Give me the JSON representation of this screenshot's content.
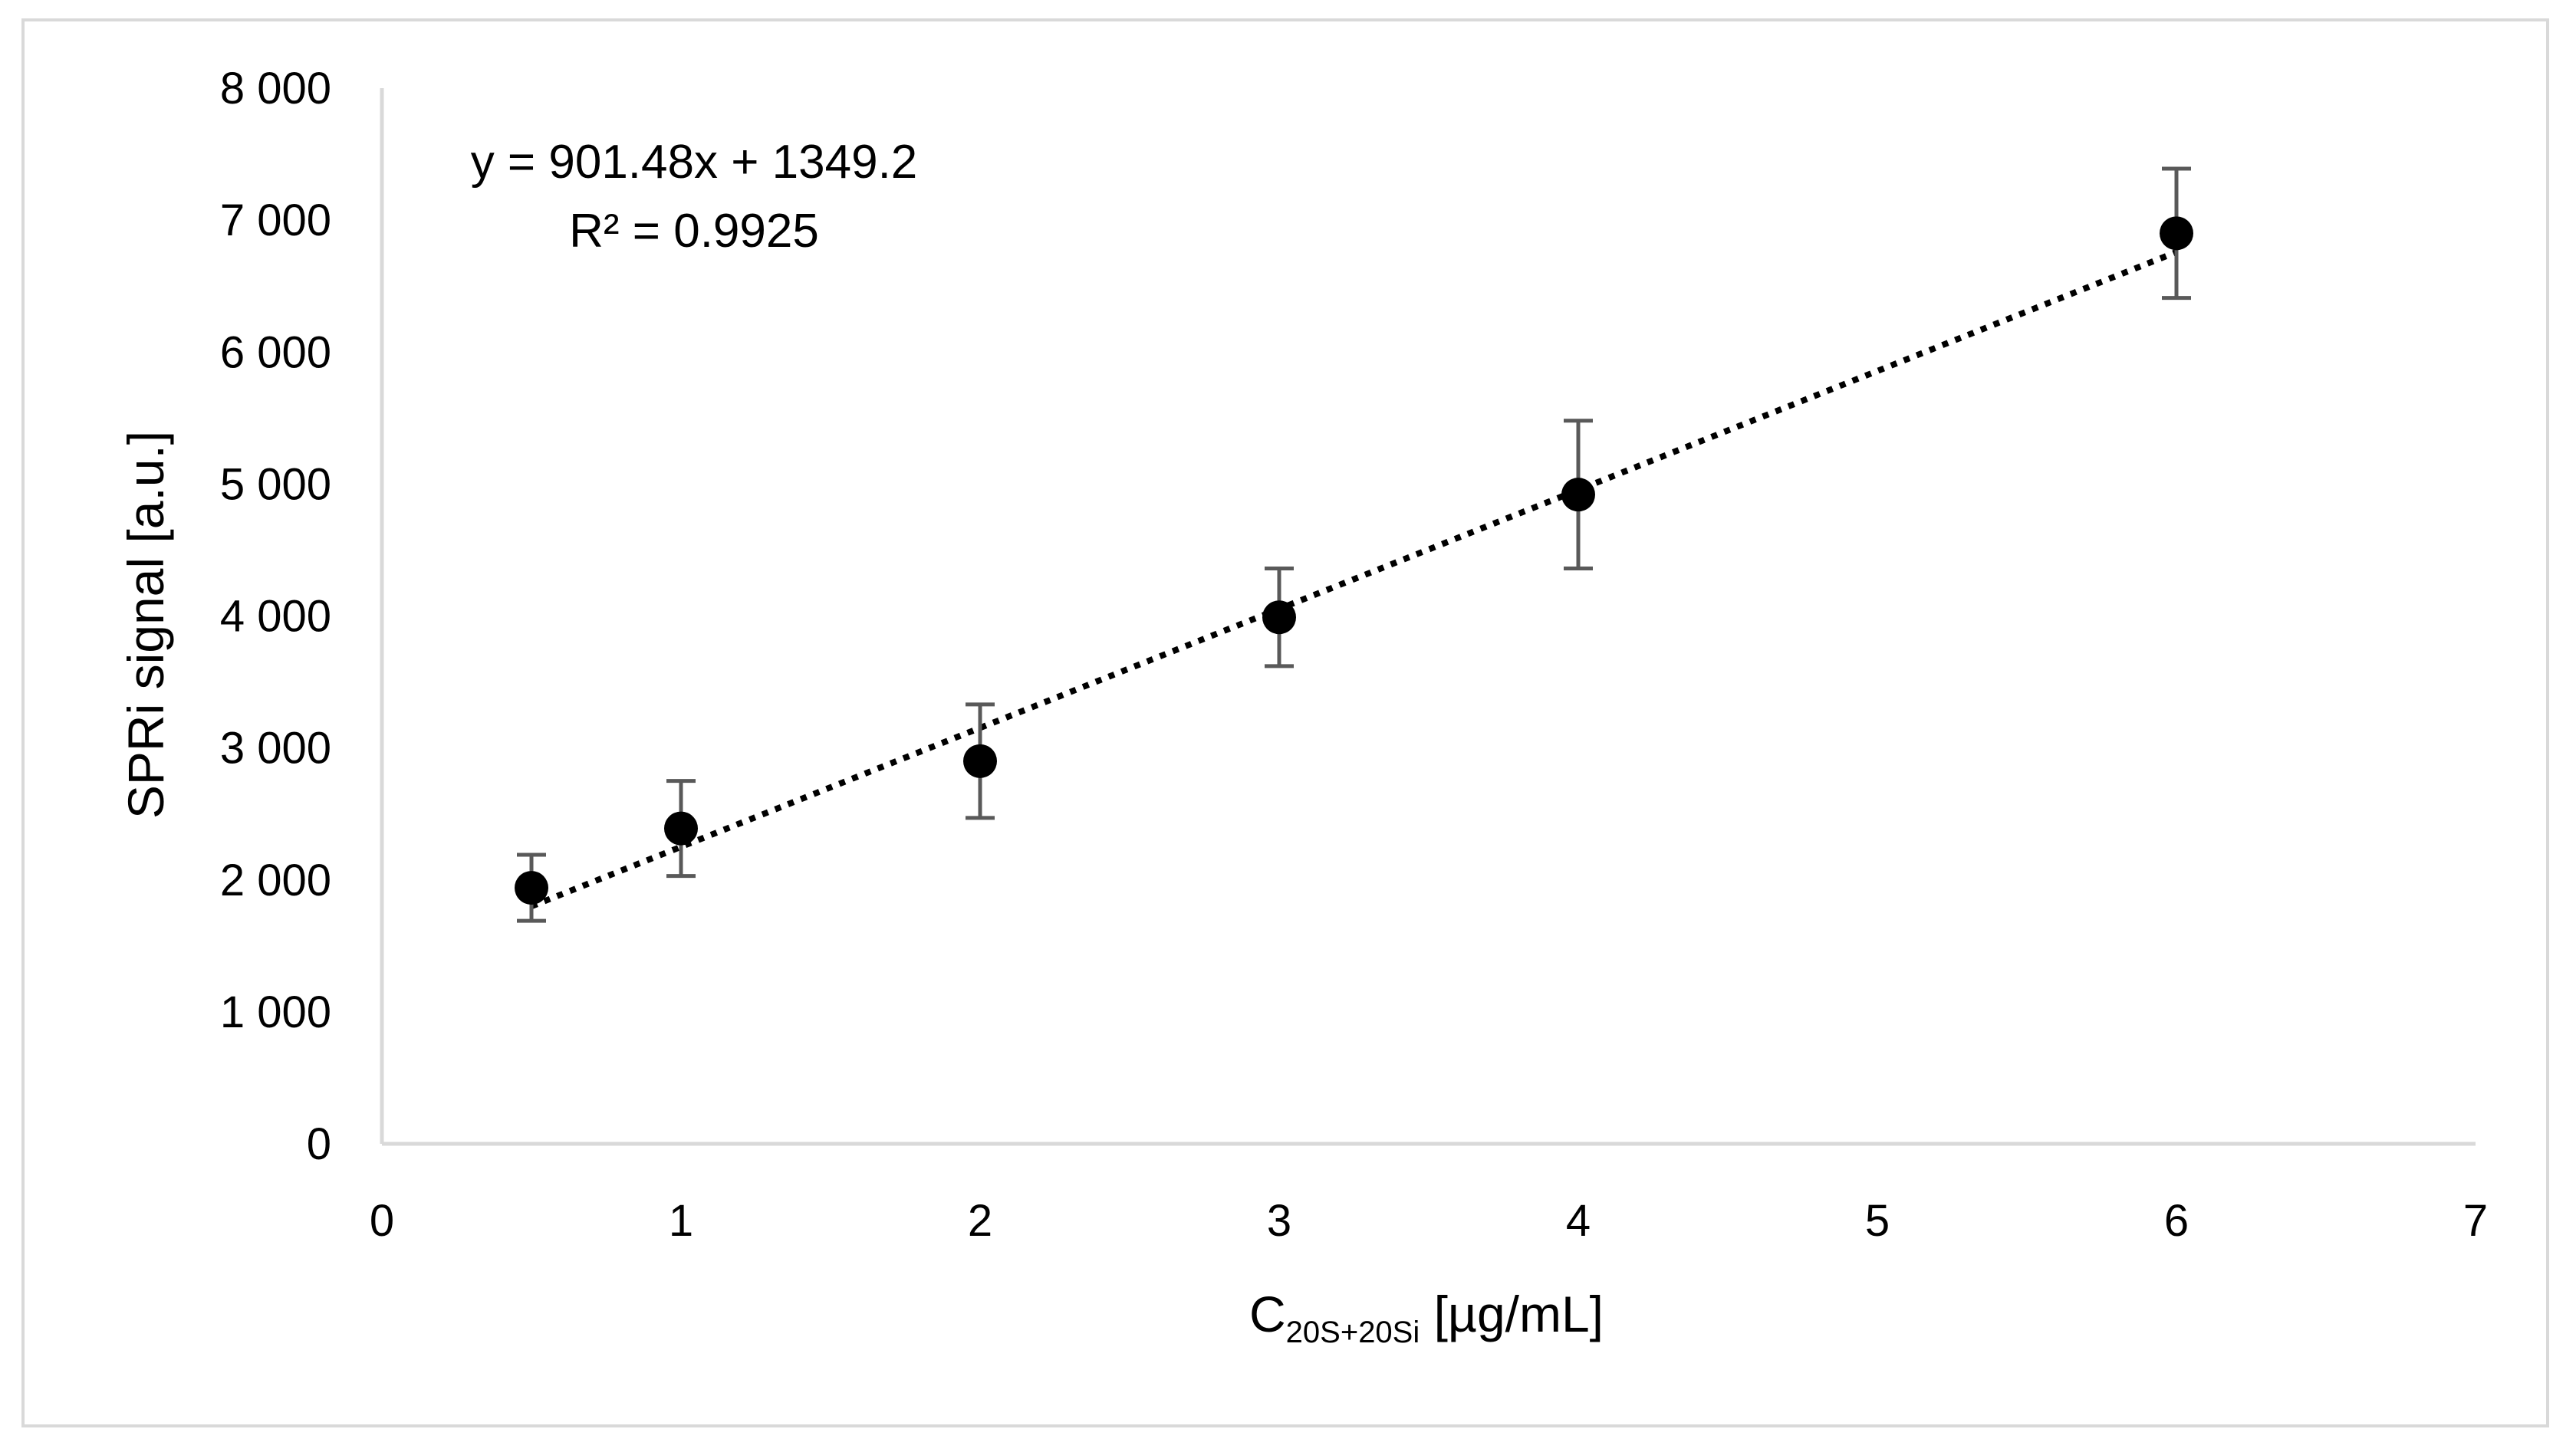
{
  "chart_data": {
    "type": "scatter",
    "title": "",
    "xlabel": "C",
    "xlabel_subscript": "20S+20Si",
    "xlabel_unit": " [µg/mL]",
    "ylabel": "SPRi signal [a.u.]",
    "xlim": [
      0,
      7
    ],
    "ylim": [
      0,
      8000
    ],
    "x_ticks": [
      0,
      1,
      2,
      3,
      4,
      5,
      6,
      7
    ],
    "x_tick_labels": [
      "0",
      "1",
      "2",
      "3",
      "4",
      "5",
      "6",
      "7"
    ],
    "y_ticks": [
      0,
      1000,
      2000,
      3000,
      4000,
      5000,
      6000,
      7000,
      8000
    ],
    "y_tick_labels": [
      "0",
      "1 000",
      "2 000",
      "3 000",
      "4 000",
      "5 000",
      "6 000",
      "7 000",
      "8 000"
    ],
    "grid": false,
    "legend": "none",
    "series": [
      {
        "marker": "circle",
        "color": "#000000",
        "x": [
          0.5,
          1,
          2,
          3,
          4,
          6
        ],
        "y": [
          1940,
          2390,
          2900,
          3990,
          4920,
          6900
        ],
        "error": [
          250,
          360,
          430,
          370,
          560,
          490
        ],
        "error_color": "#595959"
      }
    ],
    "trendline": {
      "type": "linear",
      "slope": 901.48,
      "intercept": 1349.2,
      "x_range": [
        0.5,
        6
      ],
      "style": "dotted",
      "color": "#000000"
    },
    "annotations": {
      "equation": "y = 901.48x + 1349.2",
      "r_squared": "R² = 0.9925"
    }
  }
}
